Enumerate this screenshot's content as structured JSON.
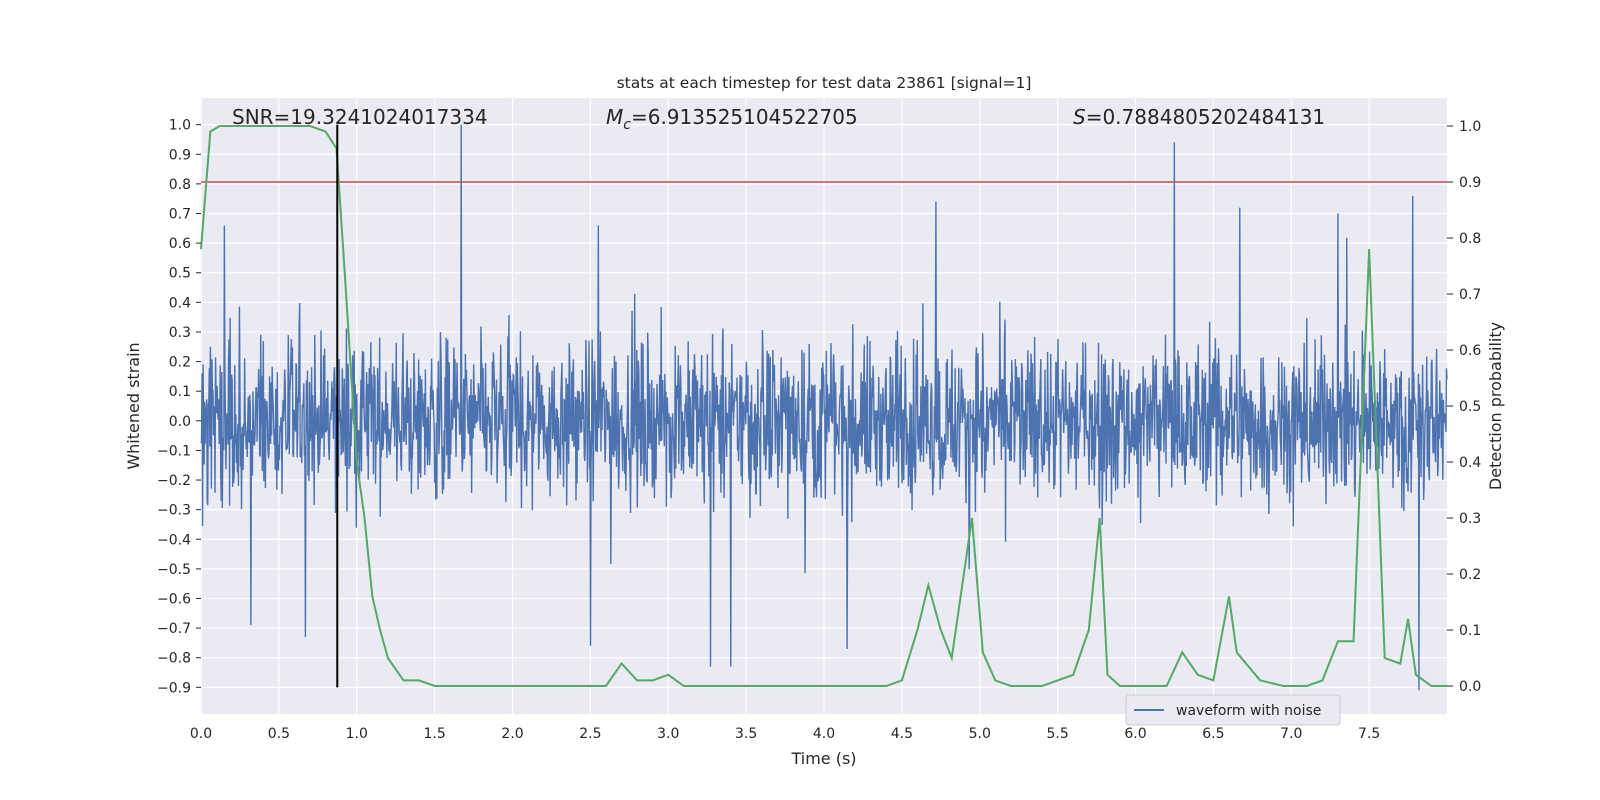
{
  "chart_data": {
    "type": "line",
    "title": "stats at each timestep for test data 23861 [signal=1]",
    "xlabel": "Time (s)",
    "ylabel_left": "Whitened strain",
    "ylabel_right": "Detection probability",
    "xlim": [
      0.0,
      8.0
    ],
    "ylim_left": [
      -0.99,
      1.09
    ],
    "ylim_right": [
      -0.05,
      1.05
    ],
    "x_ticks": [
      0.0,
      0.5,
      1.0,
      1.5,
      2.0,
      2.5,
      3.0,
      3.5,
      4.0,
      4.5,
      5.0,
      5.5,
      6.0,
      6.5,
      7.0,
      7.5
    ],
    "x_tick_labels": [
      "0.0",
      "0.5",
      "1.0",
      "1.5",
      "2.0",
      "2.5",
      "3.0",
      "3.5",
      "4.0",
      "4.5",
      "5.0",
      "5.5",
      "6.0",
      "6.5",
      "7.0",
      "7.5"
    ],
    "y_left_ticks": [
      1.0,
      0.9,
      0.8,
      0.7,
      0.6,
      0.5,
      0.4,
      0.3,
      0.2,
      0.1,
      0.0,
      -0.1,
      -0.2,
      -0.3,
      -0.4,
      -0.5,
      -0.6,
      -0.7,
      -0.8,
      -0.9
    ],
    "y_left_tick_labels": [
      "1.0",
      "0.9",
      "0.8",
      "0.7",
      "0.6",
      "0.5",
      "0.4",
      "0.3",
      "0.2",
      "0.1",
      "0.0",
      "−0.1",
      "−0.2",
      "−0.3",
      "−0.4",
      "−0.5",
      "−0.6",
      "−0.7",
      "−0.8",
      "−0.9"
    ],
    "y_right_ticks": [
      1.0,
      0.9,
      0.8,
      0.7,
      0.6,
      0.5,
      0.4,
      0.3,
      0.2,
      0.1,
      0.0
    ],
    "y_right_tick_labels": [
      "1.0",
      "0.9",
      "0.8",
      "0.7",
      "0.6",
      "0.5",
      "0.4",
      "0.3",
      "0.2",
      "0.1",
      "0.0"
    ],
    "grid": true,
    "annotations": {
      "snr_text": "SNR=19.3241024017334",
      "mc_symbol": "M",
      "mc_subscript": "c",
      "mc_value": "=6.913525104522705",
      "s_symbol": "S",
      "s_value": "=0.7884805202484131"
    },
    "legend": {
      "placement": "lower-right",
      "entries": [
        {
          "label": "waveform with noise",
          "color": "#4c72b0"
        }
      ]
    },
    "waveform": {
      "name": "waveform with noise",
      "color": "#4c72b0",
      "axis": "left",
      "x_range": [
        0.0,
        8.0
      ],
      "envelope_abs_typical": 0.4,
      "peaks": [
        {
          "x": 1.67,
          "y": 1.0
        },
        {
          "x": 6.25,
          "y": 0.94
        },
        {
          "x": 7.78,
          "y": 0.76
        },
        {
          "x": 4.72,
          "y": 0.74
        },
        {
          "x": 6.67,
          "y": 0.72
        },
        {
          "x": 7.82,
          "y": -0.91
        },
        {
          "x": 3.4,
          "y": -0.83
        },
        {
          "x": 3.27,
          "y": -0.83
        },
        {
          "x": 0.15,
          "y": 0.66
        },
        {
          "x": 0.32,
          "y": -0.69
        },
        {
          "x": 0.67,
          "y": -0.73
        },
        {
          "x": 4.15,
          "y": -0.77
        },
        {
          "x": 2.5,
          "y": -0.76
        },
        {
          "x": 2.55,
          "y": 0.66
        },
        {
          "x": 7.3,
          "y": 0.7
        }
      ]
    },
    "detection": {
      "name": "detection probability",
      "color": "#55a868",
      "axis": "right",
      "x": [
        0.0,
        0.06,
        0.12,
        0.25,
        0.5,
        0.7,
        0.8,
        0.87,
        0.92,
        1.0,
        1.05,
        1.1,
        1.15,
        1.2,
        1.3,
        1.35,
        1.4,
        1.5,
        1.6,
        1.7,
        1.8,
        1.9,
        2.0,
        2.2,
        2.4,
        2.6,
        2.7,
        2.8,
        2.9,
        3.0,
        3.1,
        3.2,
        3.4,
        3.6,
        3.8,
        4.0,
        4.2,
        4.4,
        4.5,
        4.6,
        4.67,
        4.75,
        4.82,
        4.95,
        5.02,
        5.1,
        5.2,
        5.4,
        5.5,
        5.6,
        5.7,
        5.77,
        5.82,
        5.9,
        6.0,
        6.1,
        6.2,
        6.3,
        6.4,
        6.5,
        6.6,
        6.65,
        6.8,
        6.95,
        7.1,
        7.2,
        7.3,
        7.4,
        7.5,
        7.6,
        7.7,
        7.75,
        7.8,
        7.9,
        8.0
      ],
      "y": [
        0.78,
        0.99,
        1.0,
        1.0,
        1.0,
        1.0,
        0.99,
        0.96,
        0.75,
        0.4,
        0.3,
        0.16,
        0.1,
        0.05,
        0.01,
        0.01,
        0.01,
        0.0,
        0.0,
        0.0,
        0.0,
        0.0,
        0.0,
        0.0,
        0.0,
        0.0,
        0.04,
        0.01,
        0.01,
        0.02,
        0.0,
        0.0,
        0.0,
        0.0,
        0.0,
        0.0,
        0.0,
        0.0,
        0.01,
        0.1,
        0.18,
        0.1,
        0.05,
        0.3,
        0.06,
        0.01,
        0.0,
        0.0,
        0.01,
        0.02,
        0.1,
        0.3,
        0.02,
        0.0,
        0.0,
        0.0,
        0.0,
        0.06,
        0.02,
        0.01,
        0.16,
        0.06,
        0.01,
        0.0,
        0.0,
        0.01,
        0.08,
        0.08,
        0.78,
        0.05,
        0.04,
        0.12,
        0.02,
        0.0,
        0.0
      ]
    },
    "threshold": {
      "axis": "right",
      "value": 0.9,
      "color": "#c44e52"
    },
    "marker": {
      "x": 0.875,
      "color": "#000000"
    }
  }
}
